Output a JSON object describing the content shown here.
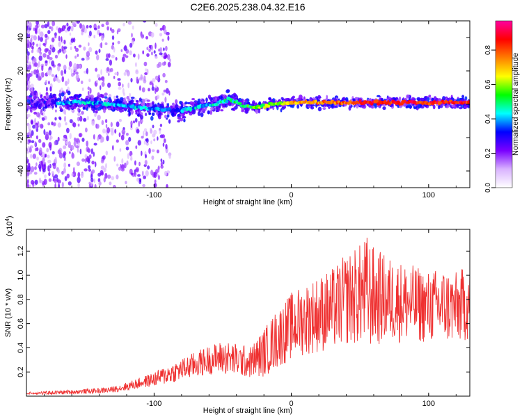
{
  "chart_data": [
    {
      "type": "heatmap",
      "title": "C2E6.2025.238.04.32.E16",
      "xlabel": "Height of straight line (km)",
      "ylabel": "Frequency (Hz)",
      "xlim": [
        -193,
        130
      ],
      "ylim": [
        -50,
        50
      ],
      "xticks": [
        -100,
        0,
        100
      ],
      "xtick_labels": [
        "-100",
        "0",
        "100"
      ],
      "yticks": [
        -40,
        -20,
        0,
        20,
        40
      ],
      "ytick_labels": [
        "-40",
        "-20",
        "0",
        "20",
        "40"
      ],
      "colorbar": {
        "label": "Normalized spectral amplitude",
        "range": [
          0,
          0.97
        ],
        "ticks": [
          0,
          0.2,
          0.4,
          0.6,
          0.8
        ],
        "tick_labels": [
          "0.0",
          "0.2",
          "0.4",
          "0.6",
          "0.8"
        ],
        "colors": [
          "#ffffff",
          "#d9b3ff",
          "#7a00ff",
          "#0000ff",
          "#00ffff",
          "#00ff00",
          "#ffff00",
          "#ff7f00",
          "#ff0000",
          "#ff00a0"
        ]
      },
      "ridge": {
        "x": [
          -193,
          -170,
          -150,
          -130,
          -110,
          -95,
          -85,
          -75,
          -65,
          -55,
          -45,
          -35,
          -25,
          -15,
          0,
          20,
          40,
          60,
          80,
          100,
          130
        ],
        "frequency": [
          1,
          1,
          1,
          0,
          -2,
          -3,
          -4,
          -3,
          -1,
          0,
          3,
          -1,
          -2,
          0,
          1,
          1,
          1,
          1,
          1,
          1,
          1
        ],
        "amplitude": [
          0.3,
          0.35,
          0.4,
          0.4,
          0.4,
          0.4,
          0.35,
          0.4,
          0.4,
          0.45,
          0.45,
          0.5,
          0.55,
          0.6,
          0.7,
          0.75,
          0.8,
          0.85,
          0.85,
          0.85,
          0.85
        ]
      }
    },
    {
      "type": "line",
      "title": "",
      "xlabel": "Height of straight line (km)",
      "ylabel": "SNR (10 * v/v)",
      "y_multiplier": "(x10",
      "y_multiplier_exp": "4",
      "y_multiplier_close": ")",
      "xlim": [
        -193,
        130
      ],
      "ylim": [
        0,
        13800
      ],
      "xticks": [
        -100,
        0,
        100
      ],
      "xtick_labels": [
        "-100",
        "0",
        "100"
      ],
      "yticks": [
        2000,
        4000,
        6000,
        8000,
        10000,
        12000
      ],
      "ytick_labels": [
        "0.2",
        "0.4",
        "0.6",
        "0.8",
        "1.0",
        "1.2"
      ],
      "color": "#ef3030",
      "series": [
        {
          "name": "SNR",
          "x": [
            -193,
            -170,
            -150,
            -140,
            -130,
            -120,
            -110,
            -100,
            -90,
            -80,
            -70,
            -60,
            -50,
            -40,
            -30,
            -20,
            -10,
            0,
            10,
            20,
            30,
            40,
            50,
            55,
            60,
            70,
            80,
            90,
            100,
            110,
            120,
            130
          ],
          "values": [
            200,
            300,
            400,
            450,
            550,
            800,
            1100,
            1400,
            1800,
            2200,
            2600,
            3000,
            3200,
            3000,
            2800,
            3600,
            4800,
            5800,
            6400,
            6800,
            7200,
            8000,
            8400,
            8600,
            8200,
            8000,
            7800,
            7600,
            7400,
            7500,
            7300,
            7800
          ],
          "spread": [
            150,
            150,
            200,
            220,
            250,
            350,
            450,
            600,
            800,
            900,
            1100,
            1200,
            1400,
            1400,
            1300,
            2000,
            2500,
            2800,
            3000,
            3200,
            3400,
            3800,
            4200,
            4800,
            4200,
            3600,
            3400,
            3200,
            3000,
            3200,
            3000,
            3200
          ]
        }
      ]
    }
  ]
}
